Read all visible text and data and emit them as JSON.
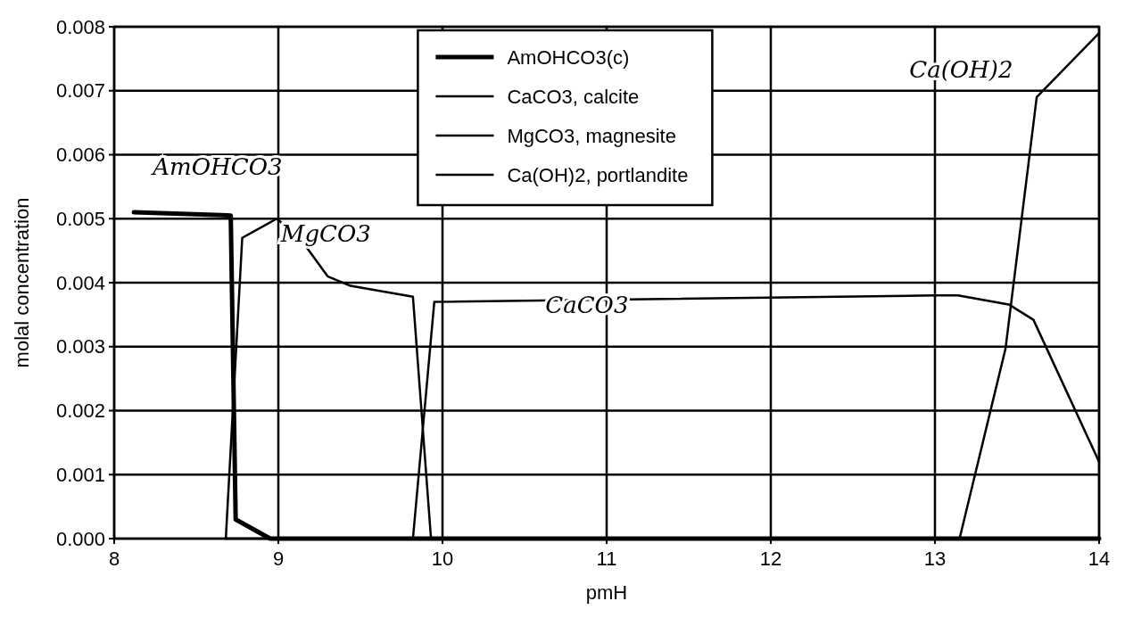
{
  "chart_data": {
    "type": "line",
    "xlabel": "pmH",
    "ylabel": "molal concentration",
    "xlim": [
      8,
      14
    ],
    "ylim": [
      0,
      0.008
    ],
    "xticks": [
      8,
      9,
      10,
      11,
      12,
      13,
      14
    ],
    "yticks": [
      {
        "value": 0,
        "label": "0.000"
      },
      {
        "value": 0.001,
        "label": "0.001"
      },
      {
        "value": 0.002,
        "label": "0.002"
      },
      {
        "value": 0.003,
        "label": "0.003"
      },
      {
        "value": 0.004,
        "label": "0.004"
      },
      {
        "value": 0.005,
        "label": "0.005"
      },
      {
        "value": 0.006,
        "label": "0.006"
      },
      {
        "value": 0.007,
        "label": "0.007"
      },
      {
        "value": 0.008,
        "label": "0.008"
      }
    ],
    "grid": true,
    "legend": "top",
    "marker": "none",
    "line_style": "solid",
    "series": [
      {
        "name": "AmOHCO3(c)",
        "color": "#000000",
        "x": [
          8.12,
          8.71,
          8.74,
          8.95,
          14
        ],
        "values": [
          0.0051,
          0.00505,
          0.0003,
          0,
          0
        ]
      },
      {
        "name": "CaCO3, calcite",
        "color": "#000000",
        "x": [
          8.68,
          9.82,
          9.95,
          13,
          13.14,
          13.45,
          13.6,
          14
        ],
        "values": [
          0,
          0,
          0.0037,
          0.0038,
          0.0038,
          0.00366,
          0.00342,
          0.0012
        ]
      },
      {
        "name": "MgCO3, magnesite",
        "color": "#000000",
        "x": [
          8.68,
          8.78,
          8.99,
          9.13,
          9.3,
          9.44,
          9.82,
          9.93,
          14
        ],
        "values": [
          0,
          0.0047,
          0.005,
          0.0047,
          0.0041,
          0.00395,
          0.00378,
          0,
          0
        ]
      },
      {
        "name": "Ca(OH)2, portlandite",
        "color": "#000000",
        "x": [
          13.15,
          13.43,
          13.62,
          14
        ],
        "values": [
          0,
          0.00297,
          0.0069,
          0.0079
        ]
      }
    ],
    "annotations": [
      "AmOHCO3",
      "MgCO3",
      "CaCO3",
      "Ca(OH)2"
    ]
  }
}
